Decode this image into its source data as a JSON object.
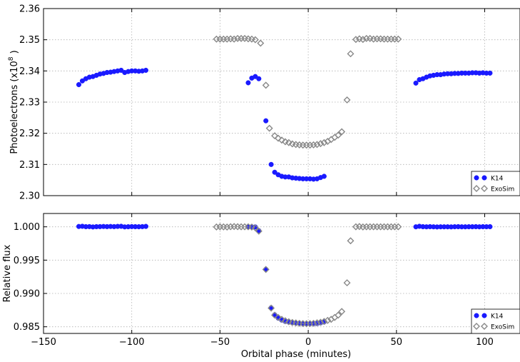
{
  "chart_data": [
    {
      "type": "scatter",
      "panel": "top",
      "title": "",
      "xlabel": "",
      "ylabel": "Photoelectrons (x10",
      "ylabel_exponent": "8",
      "ylabel_suffix": " )",
      "xlim": [
        -150,
        120
      ],
      "ylim": [
        2.3,
        2.36
      ],
      "xticks": [
        -150,
        -100,
        -50,
        0,
        50,
        100
      ],
      "yticks": [
        2.3,
        2.31,
        2.32,
        2.33,
        2.34,
        2.35,
        2.36
      ],
      "ytick_labels": [
        "2.30",
        "2.31",
        "2.32",
        "2.33",
        "2.34",
        "2.35",
        "2.36"
      ],
      "grid": true,
      "legend_position": "lower-right",
      "series": [
        {
          "name": "K14",
          "marker": "circle",
          "color": "#1a1aff",
          "points": [
            [
              -130,
              2.3356
            ],
            [
              -128,
              2.3368
            ],
            [
              -126,
              2.3375
            ],
            [
              -124,
              2.338
            ],
            [
              -122,
              2.3382
            ],
            [
              -120,
              2.3386
            ],
            [
              -118,
              2.339
            ],
            [
              -116,
              2.3392
            ],
            [
              -114,
              2.3395
            ],
            [
              -112,
              2.3396
            ],
            [
              -110,
              2.3398
            ],
            [
              -108,
              2.34
            ],
            [
              -106,
              2.3402
            ],
            [
              -104,
              2.3395
            ],
            [
              -102,
              2.3398
            ],
            [
              -100,
              2.34
            ],
            [
              -98,
              2.34
            ],
            [
              -96,
              2.3399
            ],
            [
              -94,
              2.34
            ],
            [
              -92,
              2.3402
            ],
            [
              -34,
              2.3362
            ],
            [
              -32,
              2.3377
            ],
            [
              -30,
              2.3382
            ],
            [
              -28,
              2.3375
            ],
            [
              -24,
              2.324
            ],
            [
              -21,
              2.31
            ],
            [
              -19,
              2.3075
            ],
            [
              -17,
              2.3067
            ],
            [
              -15,
              2.3062
            ],
            [
              -13,
              2.306
            ],
            [
              -11,
              2.306
            ],
            [
              -9,
              2.3057
            ],
            [
              -7,
              2.3056
            ],
            [
              -5,
              2.3055
            ],
            [
              -3,
              2.3054
            ],
            [
              -1,
              2.3054
            ],
            [
              1,
              2.3054
            ],
            [
              3,
              2.3053
            ],
            [
              5,
              2.3054
            ],
            [
              7,
              2.3058
            ],
            [
              9,
              2.3062
            ],
            [
              61,
              2.3361
            ],
            [
              63,
              2.3372
            ],
            [
              65,
              2.3375
            ],
            [
              67,
              2.338
            ],
            [
              69,
              2.3384
            ],
            [
              71,
              2.3386
            ],
            [
              73,
              2.3388
            ],
            [
              75,
              2.3388
            ],
            [
              77,
              2.339
            ],
            [
              79,
              2.3391
            ],
            [
              81,
              2.3391
            ],
            [
              83,
              2.3392
            ],
            [
              85,
              2.3392
            ],
            [
              87,
              2.3393
            ],
            [
              89,
              2.3393
            ],
            [
              91,
              2.3393
            ],
            [
              93,
              2.3394
            ],
            [
              95,
              2.3394
            ],
            [
              97,
              2.3393
            ],
            [
              99,
              2.3394
            ],
            [
              101,
              2.3393
            ],
            [
              103,
              2.3393
            ]
          ]
        },
        {
          "name": "ExoSim",
          "marker": "diamond",
          "color": "#888888",
          "points": [
            [
              -52,
              2.3502
            ],
            [
              -50,
              2.3502
            ],
            [
              -48,
              2.3502
            ],
            [
              -46,
              2.3502
            ],
            [
              -44,
              2.3503
            ],
            [
              -42,
              2.3502
            ],
            [
              -40,
              2.3504
            ],
            [
              -38,
              2.3504
            ],
            [
              -36,
              2.3504
            ],
            [
              -34,
              2.3503
            ],
            [
              -32,
              2.3502
            ],
            [
              -30,
              2.35
            ],
            [
              -27,
              2.3489
            ],
            [
              -24,
              2.3354
            ],
            [
              -22,
              2.3216
            ],
            [
              -19,
              2.3192
            ],
            [
              -17,
              2.3184
            ],
            [
              -15,
              2.3178
            ],
            [
              -13,
              2.3173
            ],
            [
              -11,
              2.317
            ],
            [
              -9,
              2.3166
            ],
            [
              -7,
              2.3164
            ],
            [
              -5,
              2.3163
            ],
            [
              -3,
              2.3162
            ],
            [
              -1,
              2.3162
            ],
            [
              1,
              2.3162
            ],
            [
              3,
              2.3163
            ],
            [
              5,
              2.3164
            ],
            [
              7,
              2.3167
            ],
            [
              9,
              2.317
            ],
            [
              11,
              2.3174
            ],
            [
              13,
              2.318
            ],
            [
              15,
              2.3187
            ],
            [
              17,
              2.3194
            ],
            [
              19,
              2.3205
            ],
            [
              22,
              2.3307
            ],
            [
              24,
              2.3455
            ],
            [
              27,
              2.3501
            ],
            [
              29,
              2.3503
            ],
            [
              31,
              2.3501
            ],
            [
              33,
              2.3504
            ],
            [
              35,
              2.3504
            ],
            [
              37,
              2.3502
            ],
            [
              39,
              2.3503
            ],
            [
              41,
              2.3503
            ],
            [
              43,
              2.3502
            ],
            [
              45,
              2.3502
            ],
            [
              47,
              2.3502
            ],
            [
              49,
              2.3502
            ],
            [
              51,
              2.3502
            ]
          ]
        }
      ]
    },
    {
      "type": "scatter",
      "panel": "bottom",
      "title": "",
      "xlabel": "Orbital phase (minutes)",
      "ylabel": "Relative flux",
      "xlim": [
        -150,
        120
      ],
      "ylim": [
        0.984,
        1.002
      ],
      "xticks": [
        -150,
        -100,
        -50,
        0,
        50,
        100
      ],
      "xtick_labels": [
        "−150",
        "−100",
        "−50",
        "0",
        "50",
        "100"
      ],
      "yticks": [
        0.985,
        0.99,
        0.995,
        1.0
      ],
      "ytick_labels": [
        "0.985",
        "0.990",
        "0.995",
        "1.000"
      ],
      "grid": true,
      "legend_position": "lower-right",
      "series": [
        {
          "name": "K14",
          "marker": "circle",
          "color": "#1a1aff",
          "points": [
            [
              -130,
              1.00005
            ],
            [
              -128,
              1.00008
            ],
            [
              -126,
              1.00002
            ],
            [
              -124,
              1.00003
            ],
            [
              -122,
              0.99998
            ],
            [
              -120,
              1.00002
            ],
            [
              -118,
              1.00003
            ],
            [
              -116,
              1.00005
            ],
            [
              -114,
              1.00003
            ],
            [
              -112,
              1.00005
            ],
            [
              -110,
              1.00003
            ],
            [
              -108,
              1.00006
            ],
            [
              -106,
              1.00008
            ],
            [
              -104,
              0.99999
            ],
            [
              -102,
              1.00001
            ],
            [
              -100,
              1.00003
            ],
            [
              -98,
              1.00002
            ],
            [
              -96,
              1.00001
            ],
            [
              -94,
              1.00003
            ],
            [
              -92,
              1.00006
            ],
            [
              -34,
              1.0
            ],
            [
              -32,
              1.00001
            ],
            [
              -30,
              0.99998
            ],
            [
              -28,
              0.99942
            ],
            [
              -24,
              0.99362
            ],
            [
              -21,
              0.98785
            ],
            [
              -19,
              0.9868
            ],
            [
              -17,
              0.9863
            ],
            [
              -15,
              0.986
            ],
            [
              -13,
              0.9858
            ],
            [
              -11,
              0.9857
            ],
            [
              -9,
              0.9856
            ],
            [
              -7,
              0.98555
            ],
            [
              -5,
              0.9855
            ],
            [
              -3,
              0.98545
            ],
            [
              -1,
              0.98545
            ],
            [
              1,
              0.98545
            ],
            [
              3,
              0.98545
            ],
            [
              5,
              0.98548
            ],
            [
              7,
              0.98558
            ],
            [
              9,
              0.98572
            ],
            [
              61,
              1.0
            ],
            [
              63,
              1.00008
            ],
            [
              65,
              1.00002
            ],
            [
              67,
              1.0
            ],
            [
              69,
              1.00002
            ],
            [
              71,
              1.0
            ],
            [
              73,
              0.99998
            ],
            [
              75,
              1.0
            ],
            [
              77,
              1.0
            ],
            [
              79,
              1.0
            ],
            [
              81,
              0.99999
            ],
            [
              83,
              1.00001
            ],
            [
              85,
              1.00002
            ],
            [
              87,
              1.0
            ],
            [
              89,
              1.0
            ],
            [
              91,
              1.00001
            ],
            [
              93,
              1.00001
            ],
            [
              95,
              1.00002
            ],
            [
              97,
              1.0
            ],
            [
              99,
              1.00002
            ],
            [
              101,
              1.00001
            ],
            [
              103,
              1.00002
            ]
          ]
        },
        {
          "name": "ExoSim",
          "marker": "diamond",
          "color": "#888888",
          "points": [
            [
              -52,
              0.99998
            ],
            [
              -50,
              1.0
            ],
            [
              -48,
              0.99999
            ],
            [
              -46,
              0.99996
            ],
            [
              -44,
              1.00002
            ],
            [
              -42,
              1.00005
            ],
            [
              -40,
              1.00002
            ],
            [
              -38,
              1.00001
            ],
            [
              -36,
              1.00001
            ],
            [
              -34,
              1.0
            ],
            [
              -32,
              0.99996
            ],
            [
              -30,
              0.99985
            ],
            [
              -28,
              0.99935
            ],
            [
              -24,
              0.9936
            ],
            [
              -21,
              0.9878
            ],
            [
              -19,
              0.98675
            ],
            [
              -17,
              0.9864
            ],
            [
              -15,
              0.98612
            ],
            [
              -13,
              0.9859
            ],
            [
              -11,
              0.98575
            ],
            [
              -9,
              0.98565
            ],
            [
              -7,
              0.98558
            ],
            [
              -5,
              0.98552
            ],
            [
              -3,
              0.98548
            ],
            [
              -1,
              0.98546
            ],
            [
              1,
              0.98548
            ],
            [
              3,
              0.98552
            ],
            [
              5,
              0.9856
            ],
            [
              7,
              0.98568
            ],
            [
              9,
              0.9858
            ],
            [
              11,
              0.98595
            ],
            [
              13,
              0.98612
            ],
            [
              15,
              0.9864
            ],
            [
              17,
              0.98675
            ],
            [
              19,
              0.9873
            ],
            [
              22,
              0.9916
            ],
            [
              24,
              0.9979
            ],
            [
              27,
              1.0
            ],
            [
              29,
              1.00005
            ],
            [
              31,
              0.99998
            ],
            [
              33,
              1.0
            ],
            [
              35,
              1.0
            ],
            [
              37,
              1.0
            ],
            [
              39,
              1.0
            ],
            [
              41,
              1.0
            ],
            [
              43,
              1.0
            ],
            [
              45,
              1.0
            ],
            [
              47,
              1.0
            ],
            [
              49,
              1.0
            ],
            [
              51,
              1.0
            ]
          ]
        }
      ]
    }
  ]
}
